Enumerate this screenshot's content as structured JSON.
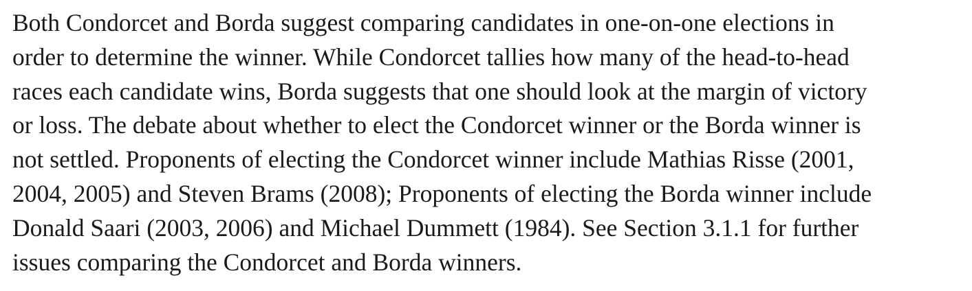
{
  "article": {
    "paragraph_lines": [
      "Both Condorcet and Borda suggest comparing candidates in one-on-one elections in",
      "order to determine the winner. While Condorcet tallies how many of the head-to-head",
      "races each candidate wins, Borda suggests that one should look at the margin of victory",
      "or loss. The debate about whether to elect the Condorcet winner or the Borda winner is",
      "not settled. Proponents of electing the Condorcet winner include Mathias Risse (2001,",
      "2004, 2005) and Steven Brams (2008); Proponents of electing the Borda winner include",
      "Donald Saari (2003, 2006) and Michael Dummett (1984). See Section 3.1.1 for further",
      "issues comparing the Condorcet and Borda winners."
    ]
  }
}
